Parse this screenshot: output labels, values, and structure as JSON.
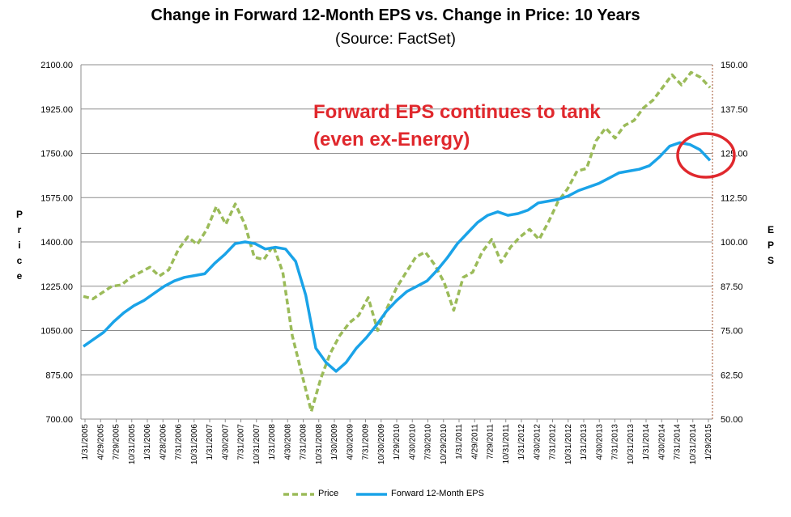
{
  "chart_data": {
    "type": "line",
    "title": "Change in Forward 12-Month EPS vs. Change in Price: 10 Years",
    "subtitle": "(Source: FactSet)",
    "ylabel": "Price",
    "y2label": "EPS",
    "ylim": [
      700,
      2100
    ],
    "y2lim": [
      50,
      150
    ],
    "yticks": [
      "2100.00",
      "1925.00",
      "1750.00",
      "1575.00",
      "1400.00",
      "1225.00",
      "1050.00",
      "875.00",
      "700.00"
    ],
    "y2ticks": [
      "150.00",
      "137.50",
      "125.00",
      "112.50",
      "100.00",
      "87.50",
      "75.00",
      "62.50",
      "50.00"
    ],
    "xticks": [
      "1/31/2005",
      "4/29/2005",
      "7/29/2005",
      "10/31/2005",
      "1/31/2006",
      "4/28/2006",
      "7/31/2006",
      "10/31/2006",
      "1/31/2007",
      "4/30/2007",
      "7/31/2007",
      "10/31/2007",
      "1/31/2008",
      "4/30/2008",
      "7/31/2008",
      "10/31/2008",
      "1/30/2009",
      "4/30/2009",
      "7/31/2009",
      "10/30/2009",
      "1/29/2010",
      "4/30/2010",
      "7/30/2010",
      "10/29/2010",
      "1/31/2011",
      "4/29/2011",
      "7/29/2011",
      "10/31/2011",
      "1/31/2012",
      "4/30/2012",
      "7/31/2012",
      "10/31/2012",
      "1/31/2013",
      "4/30/2013",
      "7/31/2013",
      "10/31/2013",
      "1/31/2014",
      "4/30/2014",
      "7/31/2014",
      "10/31/2014",
      "1/29/2015"
    ],
    "grid": true,
    "legend_position": "bottom",
    "annotation": [
      "Forward EPS continues to tank",
      "(even ex-Energy)"
    ],
    "series": [
      {
        "name": "Price",
        "axis": "left",
        "color": "#9bbb59",
        "style": "dashed",
        "values": [
          1185,
          1175,
          1200,
          1225,
          1230,
          1260,
          1280,
          1300,
          1265,
          1290,
          1370,
          1420,
          1390,
          1450,
          1540,
          1470,
          1550,
          1470,
          1340,
          1330,
          1385,
          1280,
          1030,
          880,
          730,
          860,
          960,
          1030,
          1080,
          1110,
          1180,
          1050,
          1140,
          1220,
          1280,
          1340,
          1360,
          1310,
          1240,
          1130,
          1260,
          1280,
          1360,
          1410,
          1320,
          1380,
          1420,
          1450,
          1410,
          1480,
          1560,
          1610,
          1680,
          1690,
          1800,
          1850,
          1810,
          1860,
          1880,
          1930,
          1960,
          2010,
          2060,
          2020,
          2070,
          2050,
          2010
        ]
      },
      {
        "name": "Forward 12-Month EPS",
        "axis": "right",
        "color": "#1aa3e8",
        "style": "solid",
        "values": [
          70.5,
          72.5,
          74.5,
          77.5,
          80.0,
          82.0,
          83.5,
          85.5,
          87.5,
          89.0,
          90.0,
          90.5,
          91.0,
          94.0,
          96.5,
          99.5,
          100.0,
          99.5,
          98.0,
          98.5,
          98.0,
          94.5,
          85.0,
          70.0,
          66.0,
          63.5,
          66.0,
          70.0,
          73.0,
          76.5,
          80.5,
          83.5,
          86.0,
          87.5,
          89.0,
          92.0,
          95.5,
          99.5,
          102.5,
          105.5,
          107.5,
          108.5,
          107.5,
          108.0,
          109.0,
          111.0,
          111.5,
          112.0,
          113.0,
          114.5,
          115.5,
          116.5,
          118.0,
          119.5,
          120.0,
          120.5,
          121.5,
          124.0,
          127.0,
          128.0,
          127.5,
          126.0,
          123.0
        ]
      }
    ]
  }
}
